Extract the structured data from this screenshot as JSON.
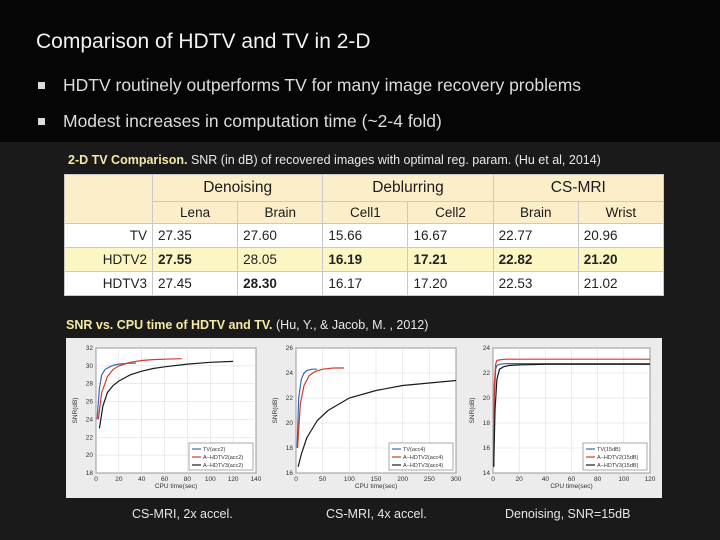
{
  "slide": {
    "title": "Comparison of HDTV and TV in 2-D",
    "bullets": [
      "HDTV routinely outperforms TV for many image recovery problems",
      "Modest increases in computation time (~2-4 fold)"
    ]
  },
  "table_caption": {
    "bold": "2-D TV Comparison.",
    "rest": " SNR (in dB) of recovered images with optimal reg. param.",
    "cite": " (Hu et al, 2014)"
  },
  "table": {
    "groups": [
      "Denoising",
      "Deblurring",
      "CS-MRI"
    ],
    "columns": [
      "Lena",
      "Brain",
      "Cell1",
      "Cell2",
      "Brain",
      "Wrist"
    ],
    "rows": [
      {
        "name": "TV",
        "values": [
          "27.35",
          "27.60",
          "15.66",
          "16.67",
          "22.77",
          "20.96"
        ],
        "bold": [
          false,
          false,
          false,
          false,
          false,
          false
        ]
      },
      {
        "name": "HDTV2",
        "values": [
          "27.55",
          "28.05",
          "16.19",
          "17.21",
          "22.82",
          "21.20"
        ],
        "bold": [
          true,
          false,
          true,
          true,
          true,
          true
        ]
      },
      {
        "name": "HDTV3",
        "values": [
          "27.45",
          "28.30",
          "16.17",
          "17.20",
          "22.53",
          "21.02"
        ],
        "bold": [
          false,
          true,
          false,
          false,
          false,
          false
        ]
      }
    ]
  },
  "charts_caption": {
    "bold": "SNR vs. CPU time of HDTV and TV.",
    "cite": "  (Hu, Y., & Jacob, M. , 2012)"
  },
  "colors": {
    "tv": "#3f63b5",
    "hdtv2": "#d23a2e",
    "hdtv3": "#1a1a1a",
    "header_bg": "#fbeec9",
    "highlight_row": "#fbf6c4"
  },
  "chart_data": [
    {
      "type": "line",
      "xlabel": "CPU time(sec)",
      "ylabel": "SNR(dB)",
      "xlim": [
        0,
        140
      ],
      "ylim": [
        18,
        32
      ],
      "xticks": [
        "0",
        "20",
        "40",
        "60",
        "80",
        "100",
        "120",
        "140"
      ],
      "yticks": [
        "18",
        "20",
        "22",
        "24",
        "26",
        "28",
        "30",
        "32"
      ],
      "legend": [
        "TV(acc2)",
        "A−HDTV2(acc2)",
        "A−HDTV3(acc2)"
      ],
      "legend_position": "bottom-right",
      "series": [
        {
          "name": "TV(acc2)",
          "x": [
            1,
            3,
            5,
            8,
            12,
            16,
            20,
            25,
            30,
            35
          ],
          "y": [
            24,
            27.5,
            29,
            29.6,
            29.9,
            30.1,
            30.2,
            30.25,
            30.3,
            30.3
          ]
        },
        {
          "name": "A−HDTV2(acc2)",
          "x": [
            2,
            5,
            10,
            15,
            20,
            30,
            40,
            50,
            60,
            75
          ],
          "y": [
            24,
            27,
            28.8,
            29.6,
            30,
            30.4,
            30.6,
            30.7,
            30.75,
            30.8
          ]
        },
        {
          "name": "A−HDTV3(acc2)",
          "x": [
            3,
            6,
            10,
            15,
            20,
            30,
            40,
            50,
            60,
            80,
            100,
            120
          ],
          "y": [
            23,
            25.5,
            27,
            27.8,
            28.3,
            29,
            29.4,
            29.7,
            29.9,
            30.2,
            30.4,
            30.5
          ]
        }
      ]
    },
    {
      "type": "line",
      "xlabel": "CPU time(sec)",
      "ylabel": "SNR(dB)",
      "xlim": [
        0,
        300
      ],
      "ylim": [
        16,
        26
      ],
      "xticks": [
        "0",
        "50",
        "100",
        "150",
        "200",
        "250",
        "300"
      ],
      "yticks": [
        "16",
        "18",
        "20",
        "22",
        "24",
        "26"
      ],
      "legend": [
        "TV(acc4)",
        "A−HDTV2(acc4)",
        "A−HDTV3(acc4)"
      ],
      "legend_position": "bottom-right",
      "series": [
        {
          "name": "TV(acc4)",
          "x": [
            2,
            5,
            10,
            15,
            20,
            30,
            40
          ],
          "y": [
            18,
            22,
            23.5,
            24,
            24.2,
            24.3,
            24.3
          ]
        },
        {
          "name": "A−HDTV2(acc4)",
          "x": [
            3,
            8,
            15,
            25,
            35,
            50,
            70,
            90
          ],
          "y": [
            18,
            21.5,
            23,
            23.8,
            24.1,
            24.3,
            24.4,
            24.4
          ]
        },
        {
          "name": "A−HDTV3(acc4)",
          "x": [
            4,
            10,
            20,
            40,
            60,
            100,
            150,
            200,
            250,
            300
          ],
          "y": [
            16.5,
            17.5,
            18.8,
            20.2,
            21,
            22,
            22.6,
            23,
            23.2,
            23.4
          ]
        }
      ]
    },
    {
      "type": "line",
      "xlabel": "CPU time(sec)",
      "ylabel": "SNR(dB)",
      "xlim": [
        0,
        120
      ],
      "ylim": [
        14,
        24
      ],
      "xticks": [
        "0",
        "20",
        "40",
        "60",
        "80",
        "100",
        "120"
      ],
      "yticks": [
        "14",
        "16",
        "18",
        "20",
        "22",
        "24"
      ],
      "legend": [
        "TV(15dB)",
        "A−HDTV2(15dB)",
        "A−HDTV3(15dB)"
      ],
      "legend_position": "bottom-right",
      "series": [
        {
          "name": "TV(15dB)",
          "x": [
            0.5,
            1,
            2,
            3,
            5,
            10,
            20,
            40,
            60,
            80,
            100,
            120
          ],
          "y": [
            14.5,
            20,
            22.3,
            22.6,
            22.7,
            22.75,
            22.75,
            22.75,
            22.75,
            22.75,
            22.75,
            22.75
          ]
        },
        {
          "name": "A−HDTV2(15dB)",
          "x": [
            0.5,
            1,
            2,
            3,
            5,
            10,
            20,
            40,
            60,
            80,
            100,
            120
          ],
          "y": [
            14.5,
            21,
            22.7,
            23,
            23.05,
            23.1,
            23.1,
            23.1,
            23.1,
            23.1,
            23.1,
            23.1
          ]
        },
        {
          "name": "A−HDTV3(15dB)",
          "x": [
            0.5,
            1.5,
            3,
            5,
            8,
            12,
            20,
            40,
            60,
            80,
            100,
            120
          ],
          "y": [
            14.5,
            19,
            21.5,
            22.3,
            22.5,
            22.6,
            22.65,
            22.7,
            22.7,
            22.7,
            22.7,
            22.7
          ]
        }
      ]
    }
  ],
  "subcaptions": [
    "CS-MRI, 2x accel.",
    "CS-MRI,  4x accel.",
    "Denoising, SNR=15dB"
  ]
}
